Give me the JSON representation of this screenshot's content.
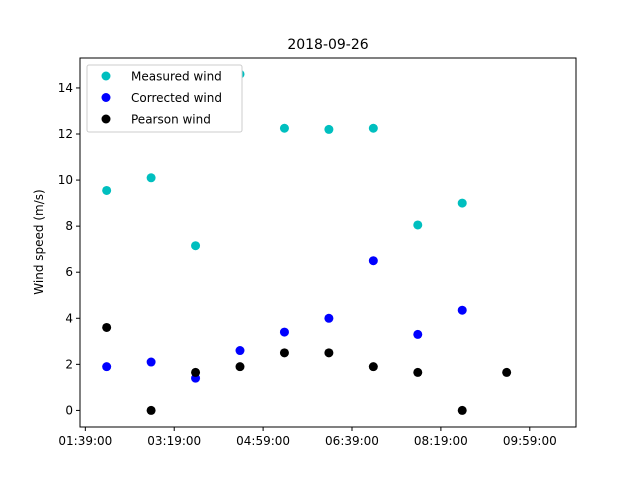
{
  "chart_data": {
    "type": "scatter",
    "title": "2018-09-26",
    "xlabel": "",
    "ylabel": "Wind speed (m/s)",
    "x_tick_labels": [
      "01:39:00",
      "03:19:00",
      "04:59:00",
      "06:39:00",
      "08:19:00",
      "09:59:00"
    ],
    "x_ticks_minutes": [
      99,
      199,
      299,
      399,
      499,
      599
    ],
    "xlim_minutes": [
      93,
      651
    ],
    "y_ticks": [
      0,
      2,
      4,
      6,
      8,
      10,
      12,
      14
    ],
    "ylim": [
      -0.72,
      15.3
    ],
    "grid": false,
    "legend_position": "top-left",
    "series": [
      {
        "name": "Measured wind",
        "color": "#00bfbf",
        "x_minutes": [
          123,
          173,
          223,
          273,
          323,
          373,
          423,
          473,
          523
        ],
        "y": [
          9.55,
          10.1,
          7.15,
          14.6,
          12.25,
          12.2,
          12.25,
          8.05,
          9.0
        ]
      },
      {
        "name": "Corrected wind",
        "color": "#0000ff",
        "x_minutes": [
          123,
          173,
          223,
          273,
          323,
          373,
          423,
          473,
          523
        ],
        "y": [
          1.9,
          2.1,
          1.4,
          2.6,
          3.4,
          4.0,
          6.5,
          3.3,
          4.35
        ]
      },
      {
        "name": "Pearson wind",
        "color": "#000000",
        "x_minutes": [
          123,
          173,
          223,
          273,
          323,
          373,
          423,
          473,
          523,
          573
        ],
        "y": [
          3.6,
          0.0,
          1.65,
          1.9,
          2.5,
          2.5,
          1.9,
          1.65,
          0.0,
          1.65
        ]
      }
    ]
  }
}
